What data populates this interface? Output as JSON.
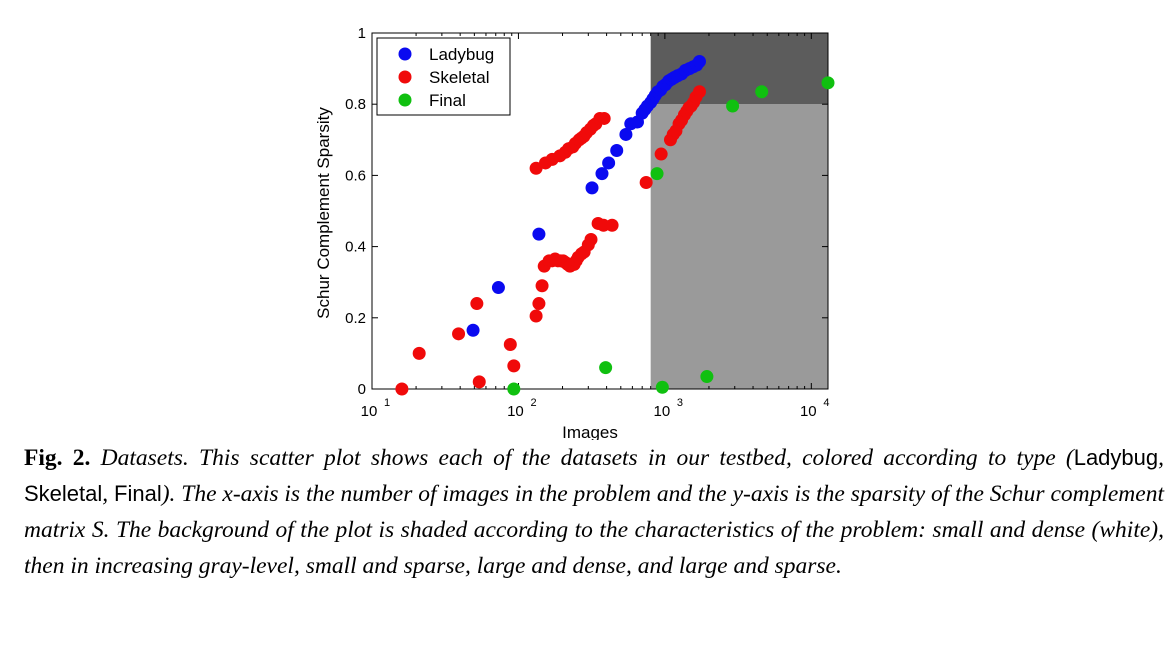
{
  "chart_data": {
    "type": "scatter",
    "xscale": "log",
    "xlim": [
      10,
      13000
    ],
    "ylim": [
      0,
      1
    ],
    "xlabel": "Images",
    "ylabel": "Schur Complement Sparsity",
    "xticks": [
      10,
      100,
      1000,
      10000
    ],
    "xtick_labels": [
      [
        "10",
        "1"
      ],
      [
        "10",
        "2"
      ],
      [
        "10",
        "3"
      ],
      [
        "10",
        "4"
      ]
    ],
    "yticks": [
      0,
      0.2,
      0.4,
      0.6,
      0.8,
      1
    ],
    "ytick_labels": [
      "0",
      "0.2",
      "0.4",
      "0.6",
      "0.8",
      "1"
    ],
    "legend_position": "top-left",
    "regions": [
      {
        "x": [
          800,
          13000
        ],
        "y": [
          0,
          0.8
        ],
        "color": "#9a9a9a"
      },
      {
        "x": [
          800,
          13000
        ],
        "y": [
          0.8,
          1
        ],
        "color": "#5c5c5c"
      }
    ],
    "series": [
      {
        "name": "Ladybug",
        "color": "#0a0af0",
        "x": [
          49,
          73,
          138,
          318,
          372,
          413,
          469,
          542,
          585,
          650,
          700,
          730,
          760,
          800,
          830,
          860,
          895,
          935,
          970,
          1010,
          1060,
          1110,
          1160,
          1220,
          1300,
          1380,
          1470,
          1560,
          1650,
          1723
        ],
        "y": [
          0.165,
          0.285,
          0.435,
          0.565,
          0.605,
          0.635,
          0.67,
          0.715,
          0.745,
          0.75,
          0.775,
          0.785,
          0.795,
          0.805,
          0.815,
          0.825,
          0.835,
          0.84,
          0.85,
          0.855,
          0.865,
          0.87,
          0.875,
          0.88,
          0.885,
          0.895,
          0.9,
          0.905,
          0.91,
          0.92
        ]
      },
      {
        "name": "Skeletal",
        "color": "#f00a0a",
        "x": [
          16,
          21,
          39,
          52,
          54,
          88,
          93,
          132,
          138,
          145,
          150,
          162,
          170,
          178,
          186,
          194,
          202,
          210,
          217,
          225,
          233,
          240,
          248,
          256,
          270,
          281,
          300,
          313,
          350,
          381,
          436,
          132,
          153,
          170,
          192,
          209,
          220,
          235,
          245,
          260,
          270,
          280,
          292,
          310,
          325,
          338,
          360,
          385,
          745,
          943,
          1092,
          1140,
          1190,
          1250,
          1300,
          1360,
          1410,
          1460,
          1510,
          1570,
          1630,
          1723
        ],
        "y": [
          0.0,
          0.1,
          0.155,
          0.24,
          0.02,
          0.125,
          0.065,
          0.205,
          0.24,
          0.29,
          0.345,
          0.36,
          0.36,
          0.365,
          0.36,
          0.36,
          0.36,
          0.355,
          0.35,
          0.345,
          0.35,
          0.35,
          0.36,
          0.37,
          0.38,
          0.385,
          0.405,
          0.42,
          0.465,
          0.46,
          0.46,
          0.62,
          0.635,
          0.645,
          0.655,
          0.665,
          0.675,
          0.68,
          0.69,
          0.7,
          0.705,
          0.71,
          0.72,
          0.73,
          0.74,
          0.745,
          0.76,
          0.76,
          0.58,
          0.66,
          0.7,
          0.715,
          0.725,
          0.745,
          0.755,
          0.77,
          0.78,
          0.79,
          0.795,
          0.805,
          0.82,
          0.835
        ]
      },
      {
        "name": "Final",
        "color": "#10c010",
        "x": [
          93,
          394,
          884,
          961,
          1936,
          2900,
          4585,
          13682
        ],
        "y": [
          0.0,
          0.06,
          0.605,
          0.005,
          0.035,
          0.795,
          0.835,
          0.86
        ]
      }
    ]
  },
  "caption": {
    "label": "Fig. 2.",
    "part1": " Datasets. This scatter plot shows each of the datasets in our testbed, colored according to type (",
    "type1": "Ladybug",
    "sep1": ", ",
    "type2": "Skeletal",
    "sep2": ", ",
    "type3": "Final",
    "part2": "). The x-axis is the number of images in the problem and the y-axis is the sparsity of the Schur complement matrix S. The background of the plot is shaded according to the characteristics of the problem: small and dense (white), then in increasing gray-level, small and sparse, large and dense, and large and sparse."
  }
}
